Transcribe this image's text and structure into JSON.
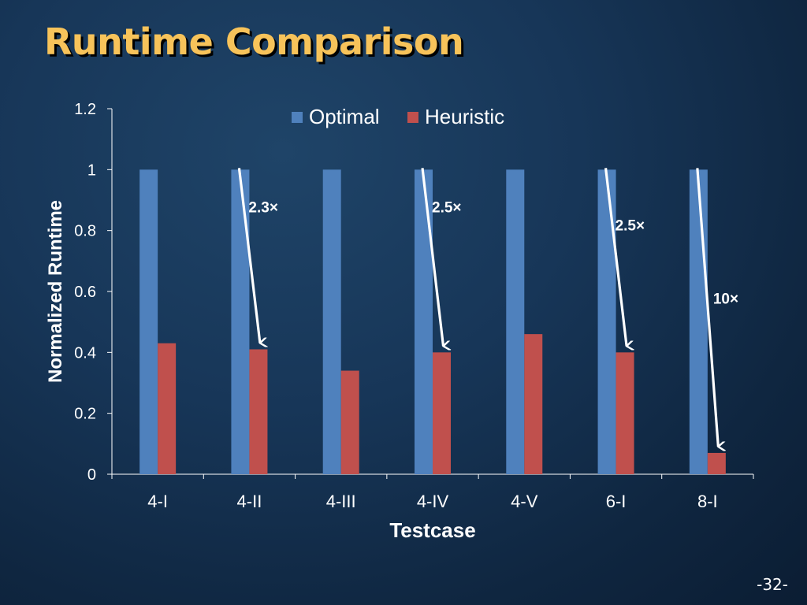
{
  "slide": {
    "title": "Runtime Comparison",
    "page_number": "-32-"
  },
  "colors": {
    "optimal": "#4f81bd",
    "heuristic": "#c0504d",
    "title": "#f7c35a",
    "text": "#ffffff",
    "axis": "#ffffff"
  },
  "chart_data": {
    "type": "bar",
    "xlabel": "Testcase",
    "ylabel": "Normalized Runtime",
    "ylim": [
      0,
      1.2
    ],
    "yticks": [
      "0",
      "0.2",
      "0.4",
      "0.6",
      "0.8",
      "1",
      "1.2"
    ],
    "ytick_values": [
      0,
      0.2,
      0.4,
      0.6,
      0.8,
      1.0,
      1.2
    ],
    "grid": false,
    "legend": "top-center",
    "categories": [
      "4-I",
      "4-II",
      "4-III",
      "4-IV",
      "4-V",
      "6-I",
      "8-I"
    ],
    "series": [
      {
        "name": "Optimal",
        "values": [
          1,
          1,
          1,
          1,
          1,
          1,
          1
        ]
      },
      {
        "name": "Heuristic",
        "values": [
          0.43,
          0.41,
          0.34,
          0.4,
          0.46,
          0.4,
          0.07
        ]
      }
    ],
    "annotations": [
      {
        "category": "4-II",
        "text": "2.3×"
      },
      {
        "category": "4-IV",
        "text": "2.5×"
      },
      {
        "category": "6-I",
        "text": "2.5×"
      },
      {
        "category": "8-I",
        "text": "10×"
      }
    ]
  }
}
